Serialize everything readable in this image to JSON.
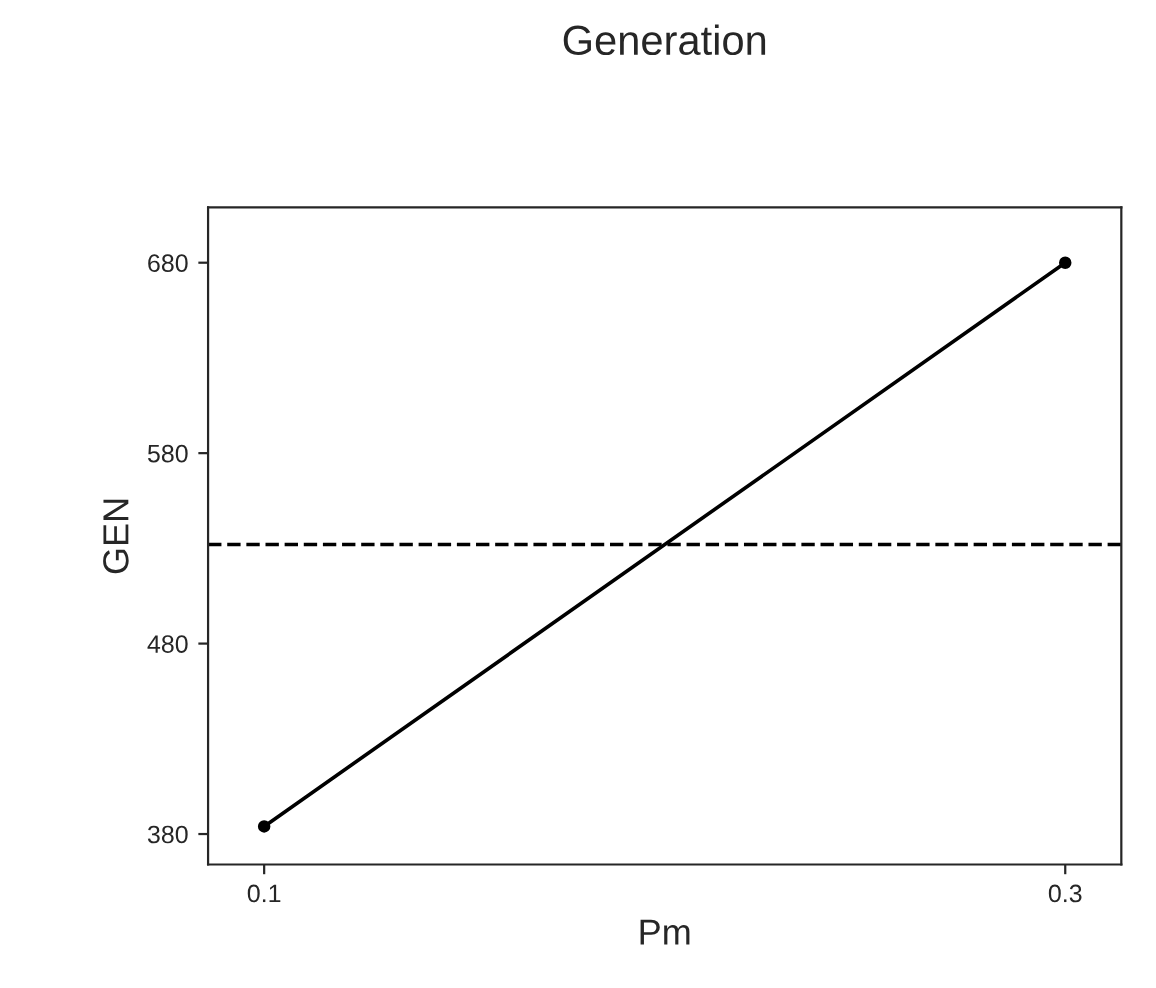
{
  "chart_data": {
    "type": "line",
    "title": "Generation",
    "xlabel": "Pm",
    "ylabel": "GEN",
    "x": [
      0.1,
      0.3
    ],
    "series": [
      {
        "color": "#000000",
        "values": [
          384,
          680
        ]
      }
    ],
    "marker": "circle",
    "line_style": "solid",
    "xlim": [
      0.086,
      0.314
    ],
    "xticks": [
      0.1,
      0.3
    ],
    "ylim": [
      364,
      709
    ],
    "yticks": [
      380,
      480,
      580,
      680
    ],
    "ref_lines": [
      {
        "axis": "y",
        "value": 532,
        "line_style": "dashed",
        "color": "#000000"
      }
    ],
    "grid": false,
    "legend": false
  }
}
